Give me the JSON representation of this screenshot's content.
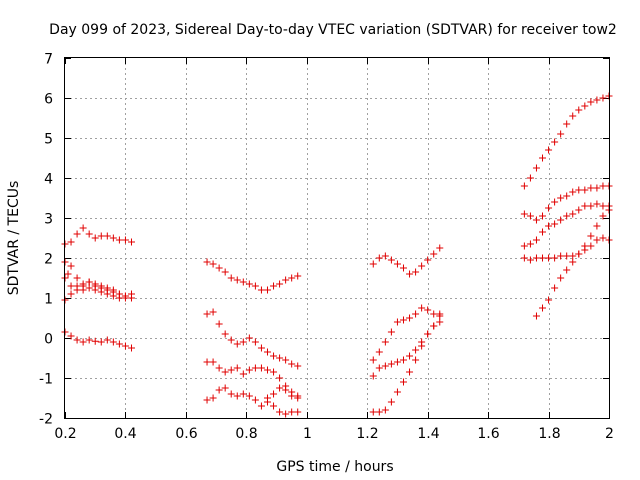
{
  "chart_data": {
    "type": "scatter",
    "title": "Day 099 of 2023, Sidereal Day-to-day VTEC variation (SDTVAR) for receiver tow2",
    "xlabel": "GPS time / hours",
    "ylabel": "SDTVAR / TECUs",
    "xlim": [
      0.2,
      2.0
    ],
    "ylim": [
      -2,
      7
    ],
    "xticks": [
      0.2,
      0.4,
      0.6,
      0.8,
      1.0,
      1.2,
      1.4,
      1.6,
      1.8,
      2.0
    ],
    "xtick_labels": [
      "0.2",
      "0.4",
      "0.6",
      "0.8",
      "1",
      "1.2",
      "1.4",
      "1.6",
      "1.8",
      "2"
    ],
    "yticks": [
      -2,
      -1,
      0,
      1,
      2,
      3,
      4,
      5,
      6,
      7
    ],
    "ytick_labels": [
      "-2",
      "-1",
      "0",
      "1",
      "2",
      "3",
      "4",
      "5",
      "6",
      "7"
    ],
    "grid": true,
    "marker": "+",
    "color": "#e00000",
    "tracks": [
      {
        "x": [
          0.2,
          0.22,
          0.24,
          0.26,
          0.28,
          0.3,
          0.32,
          0.34,
          0.36,
          0.38,
          0.4,
          0.42
        ],
        "y": [
          2.35,
          2.4,
          2.6,
          2.75,
          2.6,
          2.5,
          2.55,
          2.55,
          2.5,
          2.45,
          2.45,
          2.4
        ]
      },
      {
        "x": [
          0.2,
          0.21,
          0.22,
          0.24,
          0.26,
          0.28,
          0.3,
          0.32,
          0.34,
          0.36,
          0.38,
          0.4,
          0.42
        ],
        "y": [
          1.9,
          1.6,
          1.8,
          1.5,
          1.35,
          1.4,
          1.3,
          1.25,
          1.2,
          1.15,
          1.1,
          1.05,
          1.1
        ]
      },
      {
        "x": [
          0.2,
          0.22,
          0.24,
          0.26,
          0.28,
          0.3,
          0.32,
          0.34,
          0.36,
          0.38,
          0.4,
          0.42
        ],
        "y": [
          1.5,
          1.3,
          1.3,
          1.2,
          1.25,
          1.2,
          1.15,
          1.1,
          1.05,
          1.0,
          1.0,
          1.0
        ]
      },
      {
        "x": [
          0.2,
          0.22,
          0.24,
          0.26,
          0.28,
          0.3,
          0.32,
          0.34,
          0.36,
          0.38,
          0.4,
          0.42
        ],
        "y": [
          0.95,
          1.1,
          1.2,
          1.3,
          1.4,
          1.35,
          1.3,
          1.25,
          1.2,
          1.1,
          1.05,
          1.0
        ]
      },
      {
        "x": [
          0.2,
          0.22,
          0.24,
          0.26,
          0.28,
          0.3,
          0.32,
          0.34,
          0.36,
          0.38,
          0.4,
          0.42
        ],
        "y": [
          0.15,
          0.05,
          -0.05,
          -0.1,
          -0.05,
          -0.08,
          -0.1,
          -0.05,
          -0.1,
          -0.15,
          -0.2,
          -0.25
        ]
      },
      {
        "x": [
          0.67,
          0.69,
          0.71,
          0.73,
          0.75,
          0.77,
          0.79,
          0.81,
          0.83,
          0.85,
          0.87,
          0.89,
          0.91,
          0.93,
          0.95,
          0.97
        ],
        "y": [
          1.9,
          1.85,
          1.75,
          1.65,
          1.5,
          1.45,
          1.4,
          1.35,
          1.3,
          1.2,
          1.2,
          1.3,
          1.35,
          1.45,
          1.5,
          1.55
        ]
      },
      {
        "x": [
          0.67,
          0.69,
          0.71,
          0.73,
          0.75,
          0.77,
          0.79,
          0.81,
          0.83,
          0.85,
          0.87,
          0.89,
          0.91,
          0.93,
          0.95,
          0.97
        ],
        "y": [
          0.6,
          0.65,
          0.35,
          0.1,
          -0.05,
          -0.15,
          -0.1,
          0.0,
          -0.1,
          -0.25,
          -0.35,
          -0.45,
          -0.5,
          -0.55,
          -0.65,
          -0.7
        ]
      },
      {
        "x": [
          0.67,
          0.69,
          0.71,
          0.73,
          0.75,
          0.77,
          0.79,
          0.81,
          0.83,
          0.85,
          0.87,
          0.89,
          0.91,
          0.93,
          0.95,
          0.97
        ],
        "y": [
          -0.6,
          -0.6,
          -0.75,
          -0.85,
          -0.8,
          -0.75,
          -0.9,
          -0.8,
          -0.75,
          -0.75,
          -0.8,
          -0.85,
          -1.0,
          -1.2,
          -1.35,
          -1.45
        ]
      },
      {
        "x": [
          0.67,
          0.69,
          0.71,
          0.73,
          0.75,
          0.77,
          0.79,
          0.81,
          0.83,
          0.85,
          0.87,
          0.89,
          0.91,
          0.93,
          0.95,
          0.97
        ],
        "y": [
          -1.55,
          -1.5,
          -1.3,
          -1.25,
          -1.4,
          -1.45,
          -1.4,
          -1.45,
          -1.55,
          -1.7,
          -1.6,
          -1.4,
          -1.25,
          -1.3,
          -1.45,
          -1.5
        ]
      },
      {
        "x": [
          0.87,
          0.89,
          0.91,
          0.93,
          0.95,
          0.97
        ],
        "y": [
          -1.5,
          -1.7,
          -1.85,
          -1.9,
          -1.85,
          -1.85
        ]
      },
      {
        "x": [
          1.22,
          1.24,
          1.26,
          1.28,
          1.3,
          1.32,
          1.34,
          1.36,
          1.38,
          1.4,
          1.42,
          1.44
        ],
        "y": [
          1.85,
          2.0,
          2.05,
          1.95,
          1.85,
          1.75,
          1.6,
          1.65,
          1.8,
          1.95,
          2.1,
          2.25
        ]
      },
      {
        "x": [
          1.22,
          1.24,
          1.26,
          1.28,
          1.3,
          1.32,
          1.34,
          1.36,
          1.38,
          1.4,
          1.42,
          1.44
        ],
        "y": [
          -0.55,
          -0.35,
          -0.1,
          0.15,
          0.4,
          0.45,
          0.5,
          0.6,
          0.75,
          0.7,
          0.6,
          0.55
        ]
      },
      {
        "x": [
          1.22,
          1.24,
          1.26,
          1.28,
          1.3,
          1.32,
          1.34,
          1.36,
          1.38,
          1.4,
          1.42,
          1.44
        ],
        "y": [
          -0.95,
          -0.75,
          -0.7,
          -0.65,
          -0.6,
          -0.55,
          -0.45,
          -0.3,
          -0.1,
          0.1,
          0.3,
          0.4
        ]
      },
      {
        "x": [
          1.22,
          1.24,
          1.26,
          1.28,
          1.3,
          1.32,
          1.34,
          1.36,
          1.38,
          1.4,
          1.42,
          1.44
        ],
        "y": [
          -1.85,
          -1.85,
          -1.8,
          -1.6,
          -1.35,
          -1.1,
          -0.85,
          -0.55,
          -0.2,
          0.1,
          0.3,
          0.6
        ]
      },
      {
        "x": [
          1.72,
          1.74,
          1.76,
          1.78,
          1.8,
          1.82,
          1.84,
          1.86,
          1.88,
          1.9,
          1.92,
          1.94,
          1.96,
          1.98,
          2.0
        ],
        "y": [
          3.8,
          4.0,
          4.25,
          4.5,
          4.7,
          4.9,
          5.1,
          5.35,
          5.55,
          5.7,
          5.8,
          5.9,
          5.95,
          6.0,
          6.05
        ]
      },
      {
        "x": [
          1.72,
          1.74,
          1.76,
          1.78,
          1.8,
          1.82,
          1.84,
          1.86,
          1.88,
          1.9,
          1.92,
          1.94,
          1.96,
          1.98,
          2.0
        ],
        "y": [
          3.1,
          3.05,
          2.95,
          3.05,
          3.25,
          3.4,
          3.5,
          3.55,
          3.65,
          3.7,
          3.7,
          3.75,
          3.75,
          3.8,
          3.8
        ]
      },
      {
        "x": [
          1.72,
          1.74,
          1.76,
          1.78,
          1.8,
          1.82,
          1.84,
          1.86,
          1.88,
          1.9,
          1.92,
          1.94,
          1.96,
          1.98,
          2.0
        ],
        "y": [
          2.3,
          2.35,
          2.45,
          2.65,
          2.8,
          2.85,
          2.95,
          3.05,
          3.1,
          3.2,
          3.3,
          3.3,
          3.35,
          3.3,
          3.3
        ]
      },
      {
        "x": [
          1.72,
          1.74,
          1.76,
          1.78,
          1.8,
          1.82,
          1.84,
          1.86,
          1.88,
          1.9,
          1.92,
          1.94,
          1.96,
          1.98,
          2.0
        ],
        "y": [
          2.0,
          1.95,
          2.0,
          2.0,
          2.0,
          2.0,
          2.05,
          2.05,
          2.05,
          2.1,
          2.2,
          2.3,
          2.45,
          2.5,
          2.45
        ]
      },
      {
        "x": [
          1.76,
          1.78,
          1.8,
          1.82,
          1.84,
          1.86,
          1.88,
          1.9,
          1.92,
          1.94,
          1.96,
          1.98,
          2.0
        ],
        "y": [
          0.55,
          0.75,
          0.95,
          1.25,
          1.5,
          1.7,
          1.9,
          2.1,
          2.3,
          2.55,
          2.8,
          3.05,
          3.2
        ]
      }
    ]
  }
}
